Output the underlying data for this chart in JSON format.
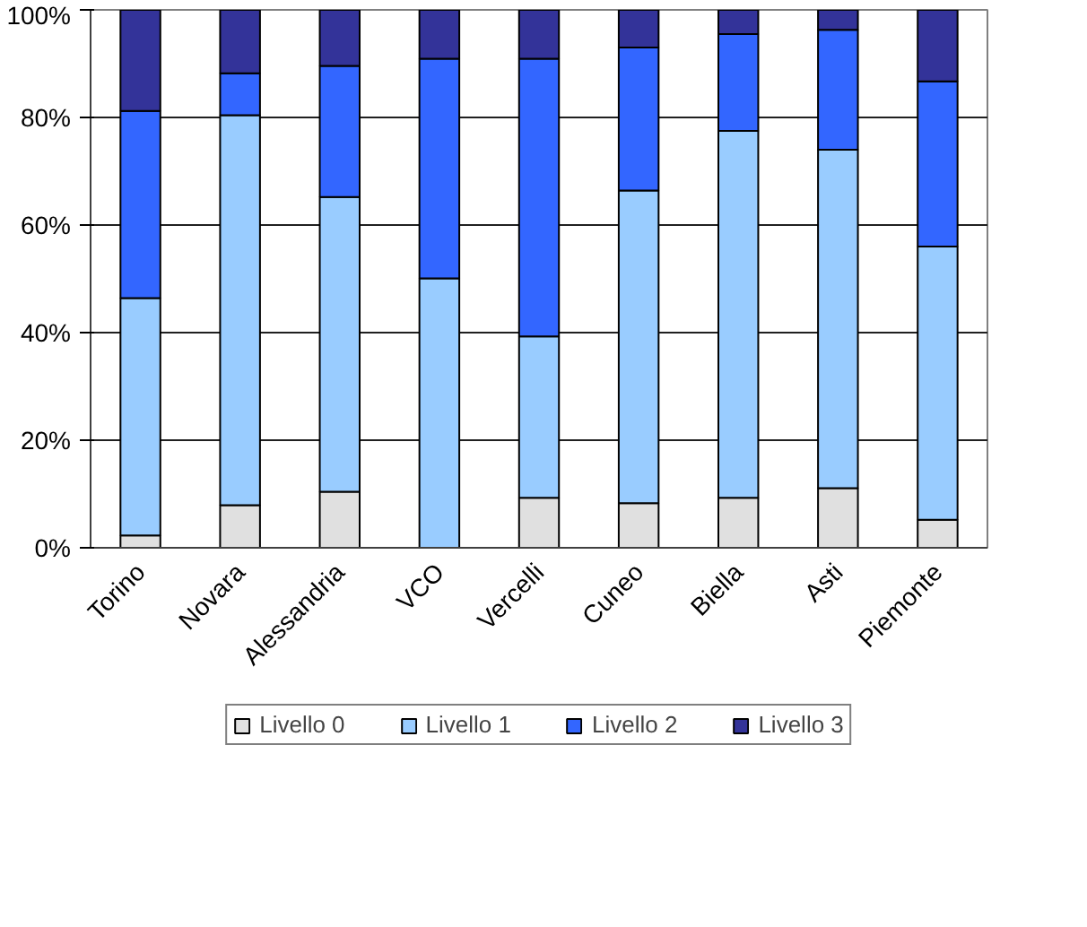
{
  "chart_data": {
    "type": "bar",
    "stacked": true,
    "categories": [
      "Torino",
      "Novara",
      "Alessandria",
      "VCO",
      "Vercelli",
      "Cuneo",
      "Biella",
      "Asti",
      "Piemonte"
    ],
    "series": [
      {
        "name": "Livello 0",
        "color": "#e0e0e0",
        "values": [
          2.3,
          7.9,
          10.4,
          0,
          9.3,
          8.3,
          9.3,
          11.1,
          5.2
        ]
      },
      {
        "name": "Livello 1",
        "color": "#99ccff",
        "values": [
          44.1,
          72.5,
          54.8,
          50.1,
          30.0,
          58.1,
          68.2,
          62.9,
          50.8
        ]
      },
      {
        "name": "Livello 2",
        "color": "#3366ff",
        "values": [
          34.8,
          7.8,
          24.4,
          40.8,
          51.6,
          26.6,
          18.0,
          22.3,
          30.7
        ]
      },
      {
        "name": "Livello 3",
        "color": "#333399",
        "values": [
          18.8,
          11.8,
          10.4,
          9.1,
          9.1,
          7.0,
          4.5,
          3.7,
          13.3
        ]
      }
    ],
    "ylim": [
      0,
      100
    ],
    "yticks": [
      {
        "value": 0,
        "label": "0%"
      },
      {
        "value": 20,
        "label": "20%"
      },
      {
        "value": 40,
        "label": "40%"
      },
      {
        "value": 60,
        "label": "60%"
      },
      {
        "value": 80,
        "label": "80%"
      },
      {
        "value": 100,
        "label": "100%"
      }
    ],
    "grid": "y",
    "legend": "bottom"
  }
}
